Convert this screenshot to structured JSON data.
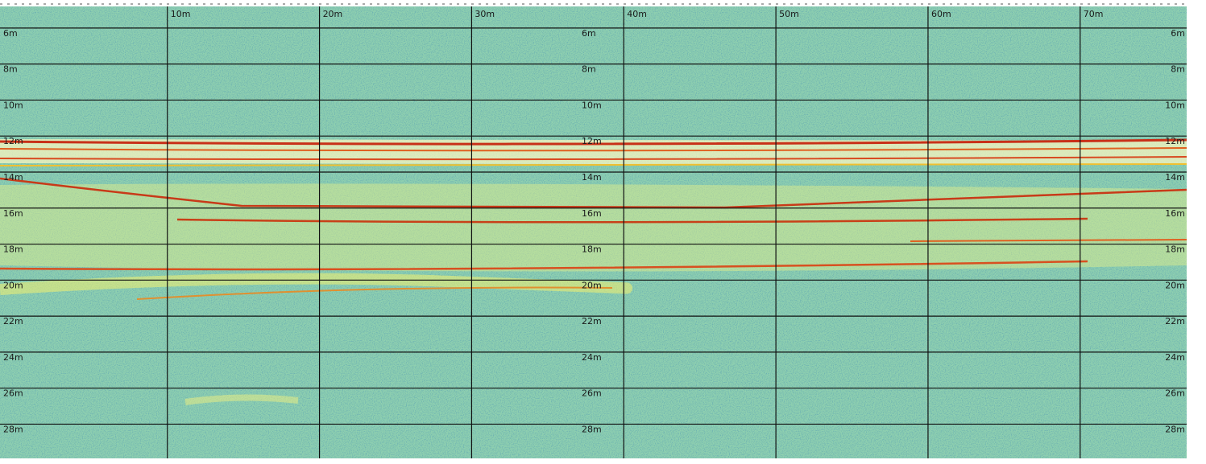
{
  "chart_data": {
    "type": "echogram",
    "xlim": [
      -1,
      77
    ],
    "ylim": [
      4.8,
      29.9
    ],
    "y_inverted": true,
    "grid": true,
    "xticks": [
      {
        "value": 10,
        "label": "10m"
      },
      {
        "value": 20,
        "label": "20m"
      },
      {
        "value": 30,
        "label": "30m"
      },
      {
        "value": 40,
        "label": "40m"
      },
      {
        "value": 50,
        "label": "50m"
      },
      {
        "value": 60,
        "label": "60m"
      },
      {
        "value": 70,
        "label": "70m"
      }
    ],
    "yticks": [
      {
        "value": 6,
        "label": "6m"
      },
      {
        "value": 8,
        "label": "8m"
      },
      {
        "value": 10,
        "label": "10m"
      },
      {
        "value": 12,
        "label": "12m"
      },
      {
        "value": 14,
        "label": "14m"
      },
      {
        "value": 16,
        "label": "16m"
      },
      {
        "value": 18,
        "label": "18m"
      },
      {
        "value": 20,
        "label": "20m"
      },
      {
        "value": 22,
        "label": "22m"
      },
      {
        "value": 24,
        "label": "24m"
      },
      {
        "value": 26,
        "label": "26m"
      },
      {
        "value": 28,
        "label": "28m"
      }
    ]
  }
}
